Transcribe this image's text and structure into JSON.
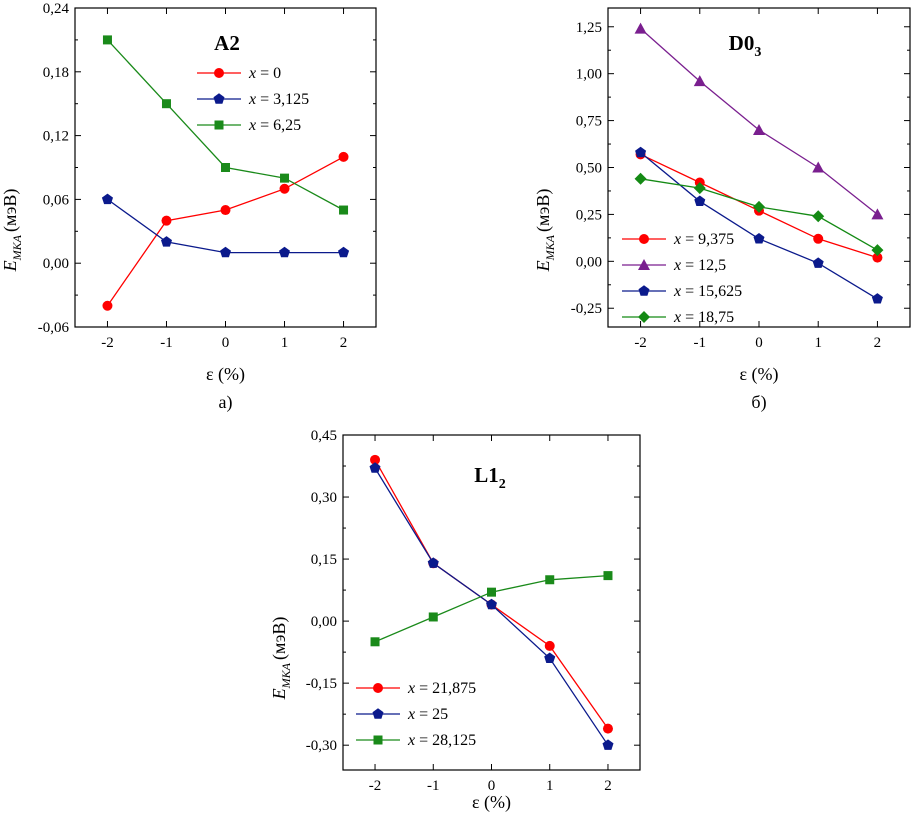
{
  "colors": {
    "red": "#ff0000",
    "navy": "#0b1a8c",
    "green": "#1a8a1a",
    "purple": "#7a1f8f",
    "green2": "#148a14"
  },
  "chart_data": [
    {
      "type": "line",
      "title": "A2",
      "title_sub": "",
      "caption": "а)",
      "xlabel": "ε (%)",
      "ylabel_main": "E",
      "ylabel_sub": "MKA",
      "ylabel_unit": "(мэВ)",
      "x": [
        -2,
        -1,
        0,
        1,
        2
      ],
      "xticks": [
        "-2",
        "-1",
        "0",
        "1",
        "2"
      ],
      "ylim": [
        -0.06,
        0.24
      ],
      "yticks": [
        "-0,06",
        "0,00",
        "0,06",
        "0,12",
        "0,18",
        "0,24"
      ],
      "legend_position": "top-center",
      "series": [
        {
          "name": "x = 0",
          "var": "x",
          "eq": " = 0",
          "color": "red",
          "marker": "circle",
          "values": [
            -0.04,
            0.04,
            0.05,
            0.07,
            0.1
          ]
        },
        {
          "name": "x = 3,125",
          "var": "x",
          "eq": " = 3,125",
          "color": "navy",
          "marker": "pentagon",
          "values": [
            0.06,
            0.02,
            0.01,
            0.01,
            0.01
          ]
        },
        {
          "name": "x = 6,25",
          "var": "x",
          "eq": " = 6,25",
          "color": "green",
          "marker": "square",
          "values": [
            0.21,
            0.15,
            0.09,
            0.08,
            0.05
          ]
        }
      ]
    },
    {
      "type": "line",
      "title": "D0",
      "title_sub": "3",
      "caption": "б)",
      "xlabel": "ε (%)",
      "ylabel_main": "E",
      "ylabel_sub": "MKA",
      "ylabel_unit": "(мэВ)",
      "x": [
        -2,
        -1,
        0,
        1,
        2
      ],
      "xticks": [
        "-2",
        "-1",
        "0",
        "1",
        "2"
      ],
      "ylim": [
        -0.35,
        1.35
      ],
      "yticks": [
        "-0,25",
        "0,00",
        "0,25",
        "0,50",
        "0,75",
        "1,00",
        "1,25"
      ],
      "legend_position": "bottom-left",
      "series": [
        {
          "name": "x = 9,375",
          "var": "x",
          "eq": " = 9,375",
          "color": "red",
          "marker": "circle",
          "values": [
            0.57,
            0.42,
            0.27,
            0.12,
            0.02
          ]
        },
        {
          "name": "x = 12,5",
          "var": "x",
          "eq": " = 12,5",
          "color": "purple",
          "marker": "triangle",
          "values": [
            1.24,
            0.96,
            0.7,
            0.5,
            0.25
          ]
        },
        {
          "name": "x = 15,625",
          "var": "x",
          "eq": " = 15,625",
          "color": "navy",
          "marker": "pentagon",
          "values": [
            0.58,
            0.32,
            0.12,
            -0.01,
            -0.2
          ]
        },
        {
          "name": "x = 18,75",
          "var": "x",
          "eq": " = 18,75",
          "color": "green2",
          "marker": "diamond",
          "values": [
            0.44,
            0.39,
            0.29,
            0.24,
            0.06
          ]
        }
      ]
    },
    {
      "type": "line",
      "title": "L1",
      "title_sub": "2",
      "caption": "",
      "xlabel": "ε (%)",
      "ylabel_main": "E",
      "ylabel_sub": "MKA",
      "ylabel_unit": "(мэВ)",
      "x": [
        -2,
        -1,
        0,
        1,
        2
      ],
      "xticks": [
        "-2",
        "-1",
        "0",
        "1",
        "2"
      ],
      "ylim": [
        -0.36,
        0.45
      ],
      "yticks": [
        "-0,30",
        "-0,15",
        "0,00",
        "0,15",
        "0,30",
        "0,45"
      ],
      "legend_position": "bottom-left",
      "series": [
        {
          "name": "x = 21,875",
          "var": "x",
          "eq": " = 21,875",
          "color": "red",
          "marker": "circle",
          "values": [
            0.39,
            0.14,
            0.04,
            -0.06,
            -0.26
          ]
        },
        {
          "name": "x = 25",
          "var": "x",
          "eq": " = 25",
          "color": "navy",
          "marker": "pentagon",
          "values": [
            0.37,
            0.14,
            0.04,
            -0.09,
            -0.3
          ]
        },
        {
          "name": "x = 28,125",
          "var": "x",
          "eq": " = 28,125",
          "color": "green",
          "marker": "square",
          "values": [
            -0.05,
            0.01,
            0.07,
            0.1,
            0.11
          ]
        }
      ]
    }
  ]
}
